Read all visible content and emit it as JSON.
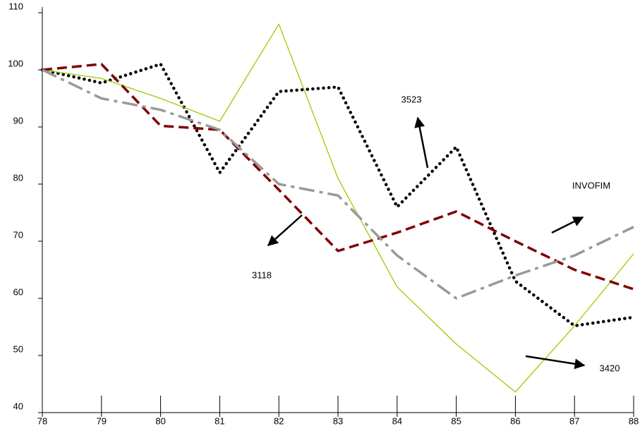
{
  "chart_data": {
    "type": "line",
    "x": [
      78,
      79,
      80,
      81,
      82,
      83,
      84,
      85,
      86,
      87,
      88
    ],
    "xlim": [
      78,
      88
    ],
    "xticks": [
      78,
      79,
      80,
      81,
      82,
      83,
      84,
      85,
      86,
      87,
      88
    ],
    "ylim": [
      40,
      110
    ],
    "yticks": [
      40,
      50,
      60,
      70,
      80,
      90,
      100,
      110
    ],
    "series": [
      {
        "name": "3523",
        "color": "#000000",
        "style": "dotted",
        "values": [
          100,
          97.7,
          101,
          82,
          96.2,
          97,
          76,
          86.5,
          63,
          55.2,
          56.7
        ]
      },
      {
        "name": "3420",
        "color": "#99cc00",
        "style": "solid",
        "values": [
          100,
          98.5,
          95,
          91,
          108,
          81,
          62,
          52,
          43.6,
          55.2,
          67.8
        ]
      },
      {
        "name": "3118",
        "color": "#800000",
        "style": "dashed",
        "values": [
          100,
          101,
          90.2,
          89.5,
          79,
          68.3,
          71.5,
          75.2,
          70,
          65,
          61.6
        ]
      },
      {
        "name": "INVOFIM",
        "color": "#999999",
        "style": "dashdot",
        "values": [
          100,
          95,
          93,
          89.5,
          80,
          78,
          67.5,
          60,
          64,
          67.5,
          72.5
        ]
      }
    ]
  }
}
